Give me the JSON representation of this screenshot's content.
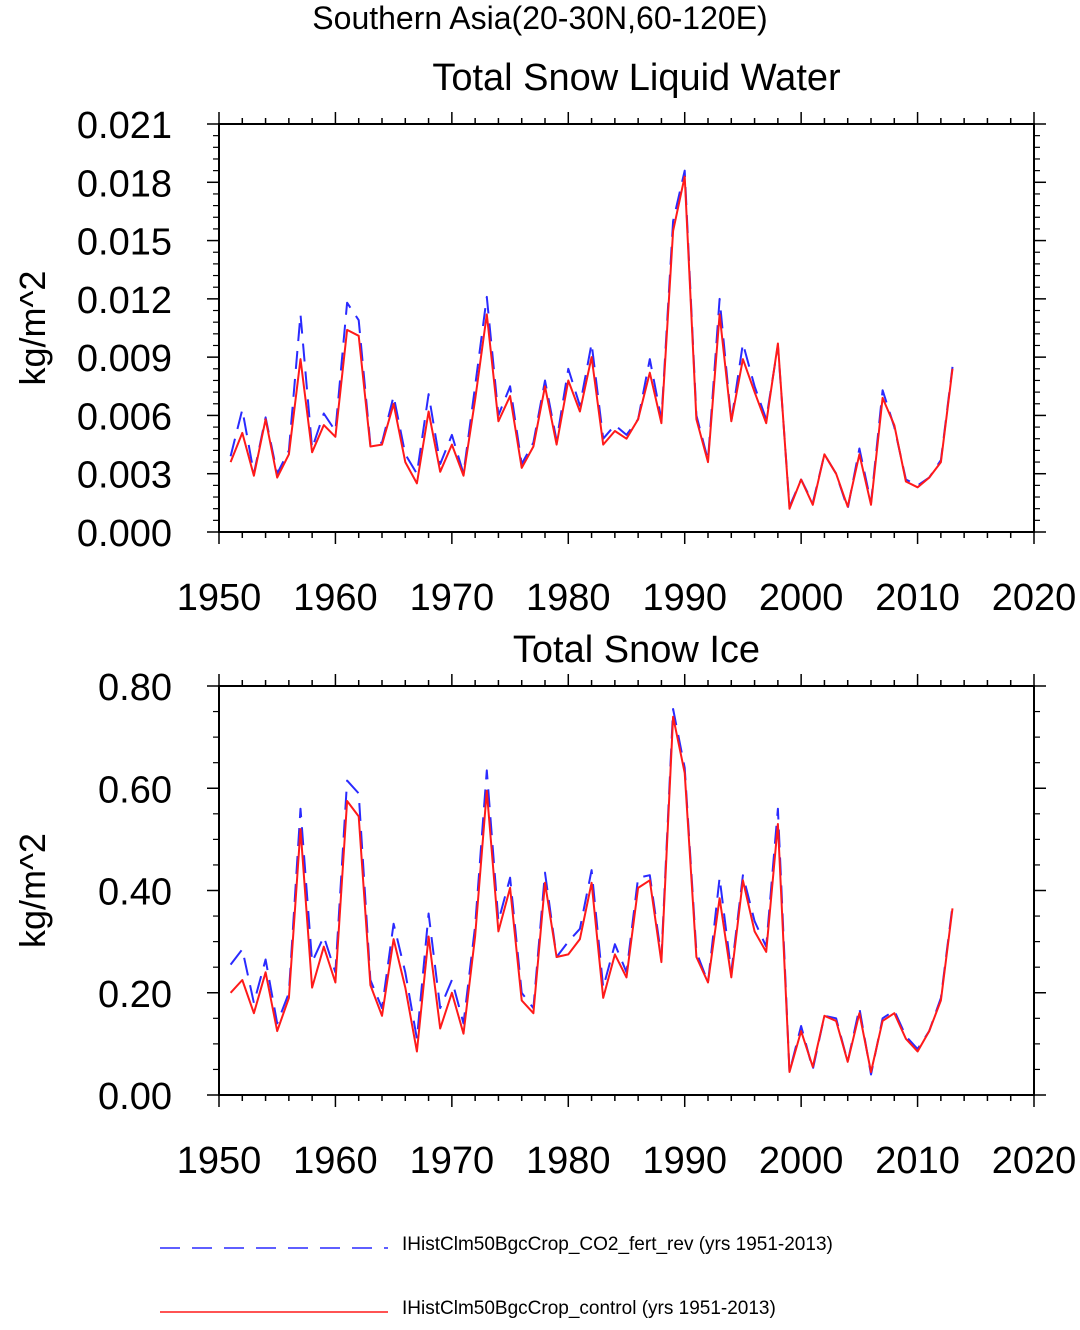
{
  "page_title": "Southern Asia(20-30N,60-120E)",
  "colors": {
    "co2_fert_rev": "#2a2aff",
    "control": "#ff1a1a",
    "axis": "#000000"
  },
  "legend": [
    {
      "label": "IHistClm50BgcCrop_CO2_fert_rev (yrs 1951-2013)",
      "style": "dashed",
      "color": "#2a2aff"
    },
    {
      "label": "IHistClm50BgcCrop_control (yrs 1951-2013)",
      "style": "solid",
      "color": "#ff1a1a"
    }
  ],
  "chart_data": [
    {
      "type": "line",
      "title": "Total Snow Liquid Water",
      "xlabel": "",
      "ylabel": "kg/m^2",
      "xlim": [
        1950,
        2020
      ],
      "ylim": [
        0.0,
        0.021
      ],
      "x_ticks": [
        "1950",
        "1960",
        "1970",
        "1980",
        "1990",
        "2000",
        "2010",
        "2020"
      ],
      "y_ticks": [
        "0.000",
        "0.003",
        "0.006",
        "0.009",
        "0.012",
        "0.015",
        "0.018",
        "0.021"
      ],
      "grid": false,
      "x": [
        1951,
        1952,
        1953,
        1954,
        1955,
        1956,
        1957,
        1958,
        1959,
        1960,
        1961,
        1962,
        1963,
        1964,
        1965,
        1966,
        1967,
        1968,
        1969,
        1970,
        1971,
        1972,
        1973,
        1974,
        1975,
        1976,
        1977,
        1978,
        1979,
        1980,
        1981,
        1982,
        1983,
        1984,
        1985,
        1986,
        1987,
        1988,
        1989,
        1990,
        1991,
        1992,
        1993,
        1994,
        1995,
        1996,
        1997,
        1998,
        1999,
        2000,
        2001,
        2002,
        2003,
        2004,
        2005,
        2006,
        2007,
        2008,
        2009,
        2010,
        2011,
        2012,
        2013
      ],
      "series": [
        {
          "name": "IHistClm50BgcCrop_CO2_fert_rev (yrs 1951-2013)",
          "style": "dashed",
          "values": [
            0.0039,
            0.0063,
            0.003,
            0.0059,
            0.003,
            0.0042,
            0.0112,
            0.0043,
            0.0061,
            0.0052,
            0.0118,
            0.0109,
            0.0045,
            0.0046,
            0.007,
            0.004,
            0.003,
            0.0071,
            0.0035,
            0.005,
            0.003,
            0.0075,
            0.0121,
            0.006,
            0.0075,
            0.0035,
            0.0046,
            0.0078,
            0.0047,
            0.0084,
            0.0065,
            0.0097,
            0.0048,
            0.0055,
            0.005,
            0.0058,
            0.0089,
            0.0058,
            0.016,
            0.0186,
            0.006,
            0.0037,
            0.012,
            0.0057,
            0.0097,
            0.0075,
            0.0058,
            0.0096,
            0.0013,
            0.0027,
            0.0015,
            0.004,
            0.003,
            0.0012,
            0.0043,
            0.0015,
            0.0073,
            0.0054,
            0.0027,
            0.0024,
            0.0028,
            0.0037,
            0.0085
          ]
        },
        {
          "name": "IHistClm50BgcCrop_control (yrs 1951-2013)",
          "style": "solid",
          "values": [
            0.0036,
            0.0051,
            0.0029,
            0.0058,
            0.0028,
            0.004,
            0.0089,
            0.0041,
            0.0055,
            0.0049,
            0.0104,
            0.0101,
            0.0044,
            0.0045,
            0.0066,
            0.0036,
            0.0025,
            0.0062,
            0.0031,
            0.0045,
            0.0029,
            0.0068,
            0.0112,
            0.0057,
            0.007,
            0.0033,
            0.0044,
            0.0075,
            0.0045,
            0.0078,
            0.0062,
            0.009,
            0.0045,
            0.0052,
            0.0048,
            0.0058,
            0.0082,
            0.0056,
            0.0155,
            0.0183,
            0.0058,
            0.0036,
            0.0112,
            0.0057,
            0.0089,
            0.0072,
            0.0056,
            0.0097,
            0.0012,
            0.0027,
            0.0014,
            0.004,
            0.003,
            0.0013,
            0.004,
            0.0014,
            0.0069,
            0.0055,
            0.0026,
            0.0023,
            0.0028,
            0.0036,
            0.0084
          ]
        }
      ]
    },
    {
      "type": "line",
      "title": "Total Snow Ice",
      "xlabel": "",
      "ylabel": "kg/m^2",
      "xlim": [
        1950,
        2020
      ],
      "ylim": [
        0.0,
        0.8
      ],
      "x_ticks": [
        "1950",
        "1960",
        "1970",
        "1980",
        "1990",
        "2000",
        "2010",
        "2020"
      ],
      "y_ticks": [
        "0.00",
        "0.20",
        "0.40",
        "0.60",
        "0.80"
      ],
      "grid": false,
      "x": [
        1951,
        1952,
        1953,
        1954,
        1955,
        1956,
        1957,
        1958,
        1959,
        1960,
        1961,
        1962,
        1963,
        1964,
        1965,
        1966,
        1967,
        1968,
        1969,
        1970,
        1971,
        1972,
        1973,
        1974,
        1975,
        1976,
        1977,
        1978,
        1979,
        1980,
        1981,
        1982,
        1983,
        1984,
        1985,
        1986,
        1987,
        1988,
        1989,
        1990,
        1991,
        1992,
        1993,
        1994,
        1995,
        1996,
        1997,
        1998,
        1999,
        2000,
        2001,
        2002,
        2003,
        2004,
        2005,
        2006,
        2007,
        2008,
        2009,
        2010,
        2011,
        2012,
        2013
      ],
      "series": [
        {
          "name": "IHistClm50BgcCrop_CO2_fert_rev (yrs 1951-2013)",
          "style": "dashed",
          "values": [
            0.255,
            0.285,
            0.18,
            0.265,
            0.14,
            0.2,
            0.56,
            0.26,
            0.31,
            0.24,
            0.615,
            0.59,
            0.225,
            0.17,
            0.335,
            0.24,
            0.11,
            0.355,
            0.17,
            0.225,
            0.14,
            0.33,
            0.635,
            0.34,
            0.425,
            0.2,
            0.17,
            0.435,
            0.27,
            0.3,
            0.325,
            0.44,
            0.21,
            0.295,
            0.24,
            0.425,
            0.43,
            0.27,
            0.755,
            0.64,
            0.28,
            0.22,
            0.425,
            0.24,
            0.43,
            0.34,
            0.29,
            0.56,
            0.045,
            0.135,
            0.05,
            0.155,
            0.15,
            0.065,
            0.17,
            0.04,
            0.15,
            0.165,
            0.115,
            0.09,
            0.125,
            0.19,
            0.37
          ]
        },
        {
          "name": "IHistClm50BgcCrop_control (yrs 1951-2013)",
          "style": "solid",
          "values": [
            0.2,
            0.225,
            0.16,
            0.24,
            0.125,
            0.19,
            0.52,
            0.21,
            0.29,
            0.22,
            0.575,
            0.545,
            0.215,
            0.155,
            0.305,
            0.21,
            0.085,
            0.31,
            0.13,
            0.2,
            0.12,
            0.31,
            0.595,
            0.32,
            0.405,
            0.185,
            0.16,
            0.415,
            0.27,
            0.275,
            0.305,
            0.415,
            0.19,
            0.275,
            0.23,
            0.405,
            0.42,
            0.26,
            0.74,
            0.63,
            0.27,
            0.22,
            0.385,
            0.23,
            0.42,
            0.32,
            0.28,
            0.53,
            0.045,
            0.125,
            0.055,
            0.155,
            0.145,
            0.065,
            0.16,
            0.045,
            0.145,
            0.16,
            0.11,
            0.085,
            0.125,
            0.185,
            0.365
          ]
        }
      ]
    }
  ]
}
